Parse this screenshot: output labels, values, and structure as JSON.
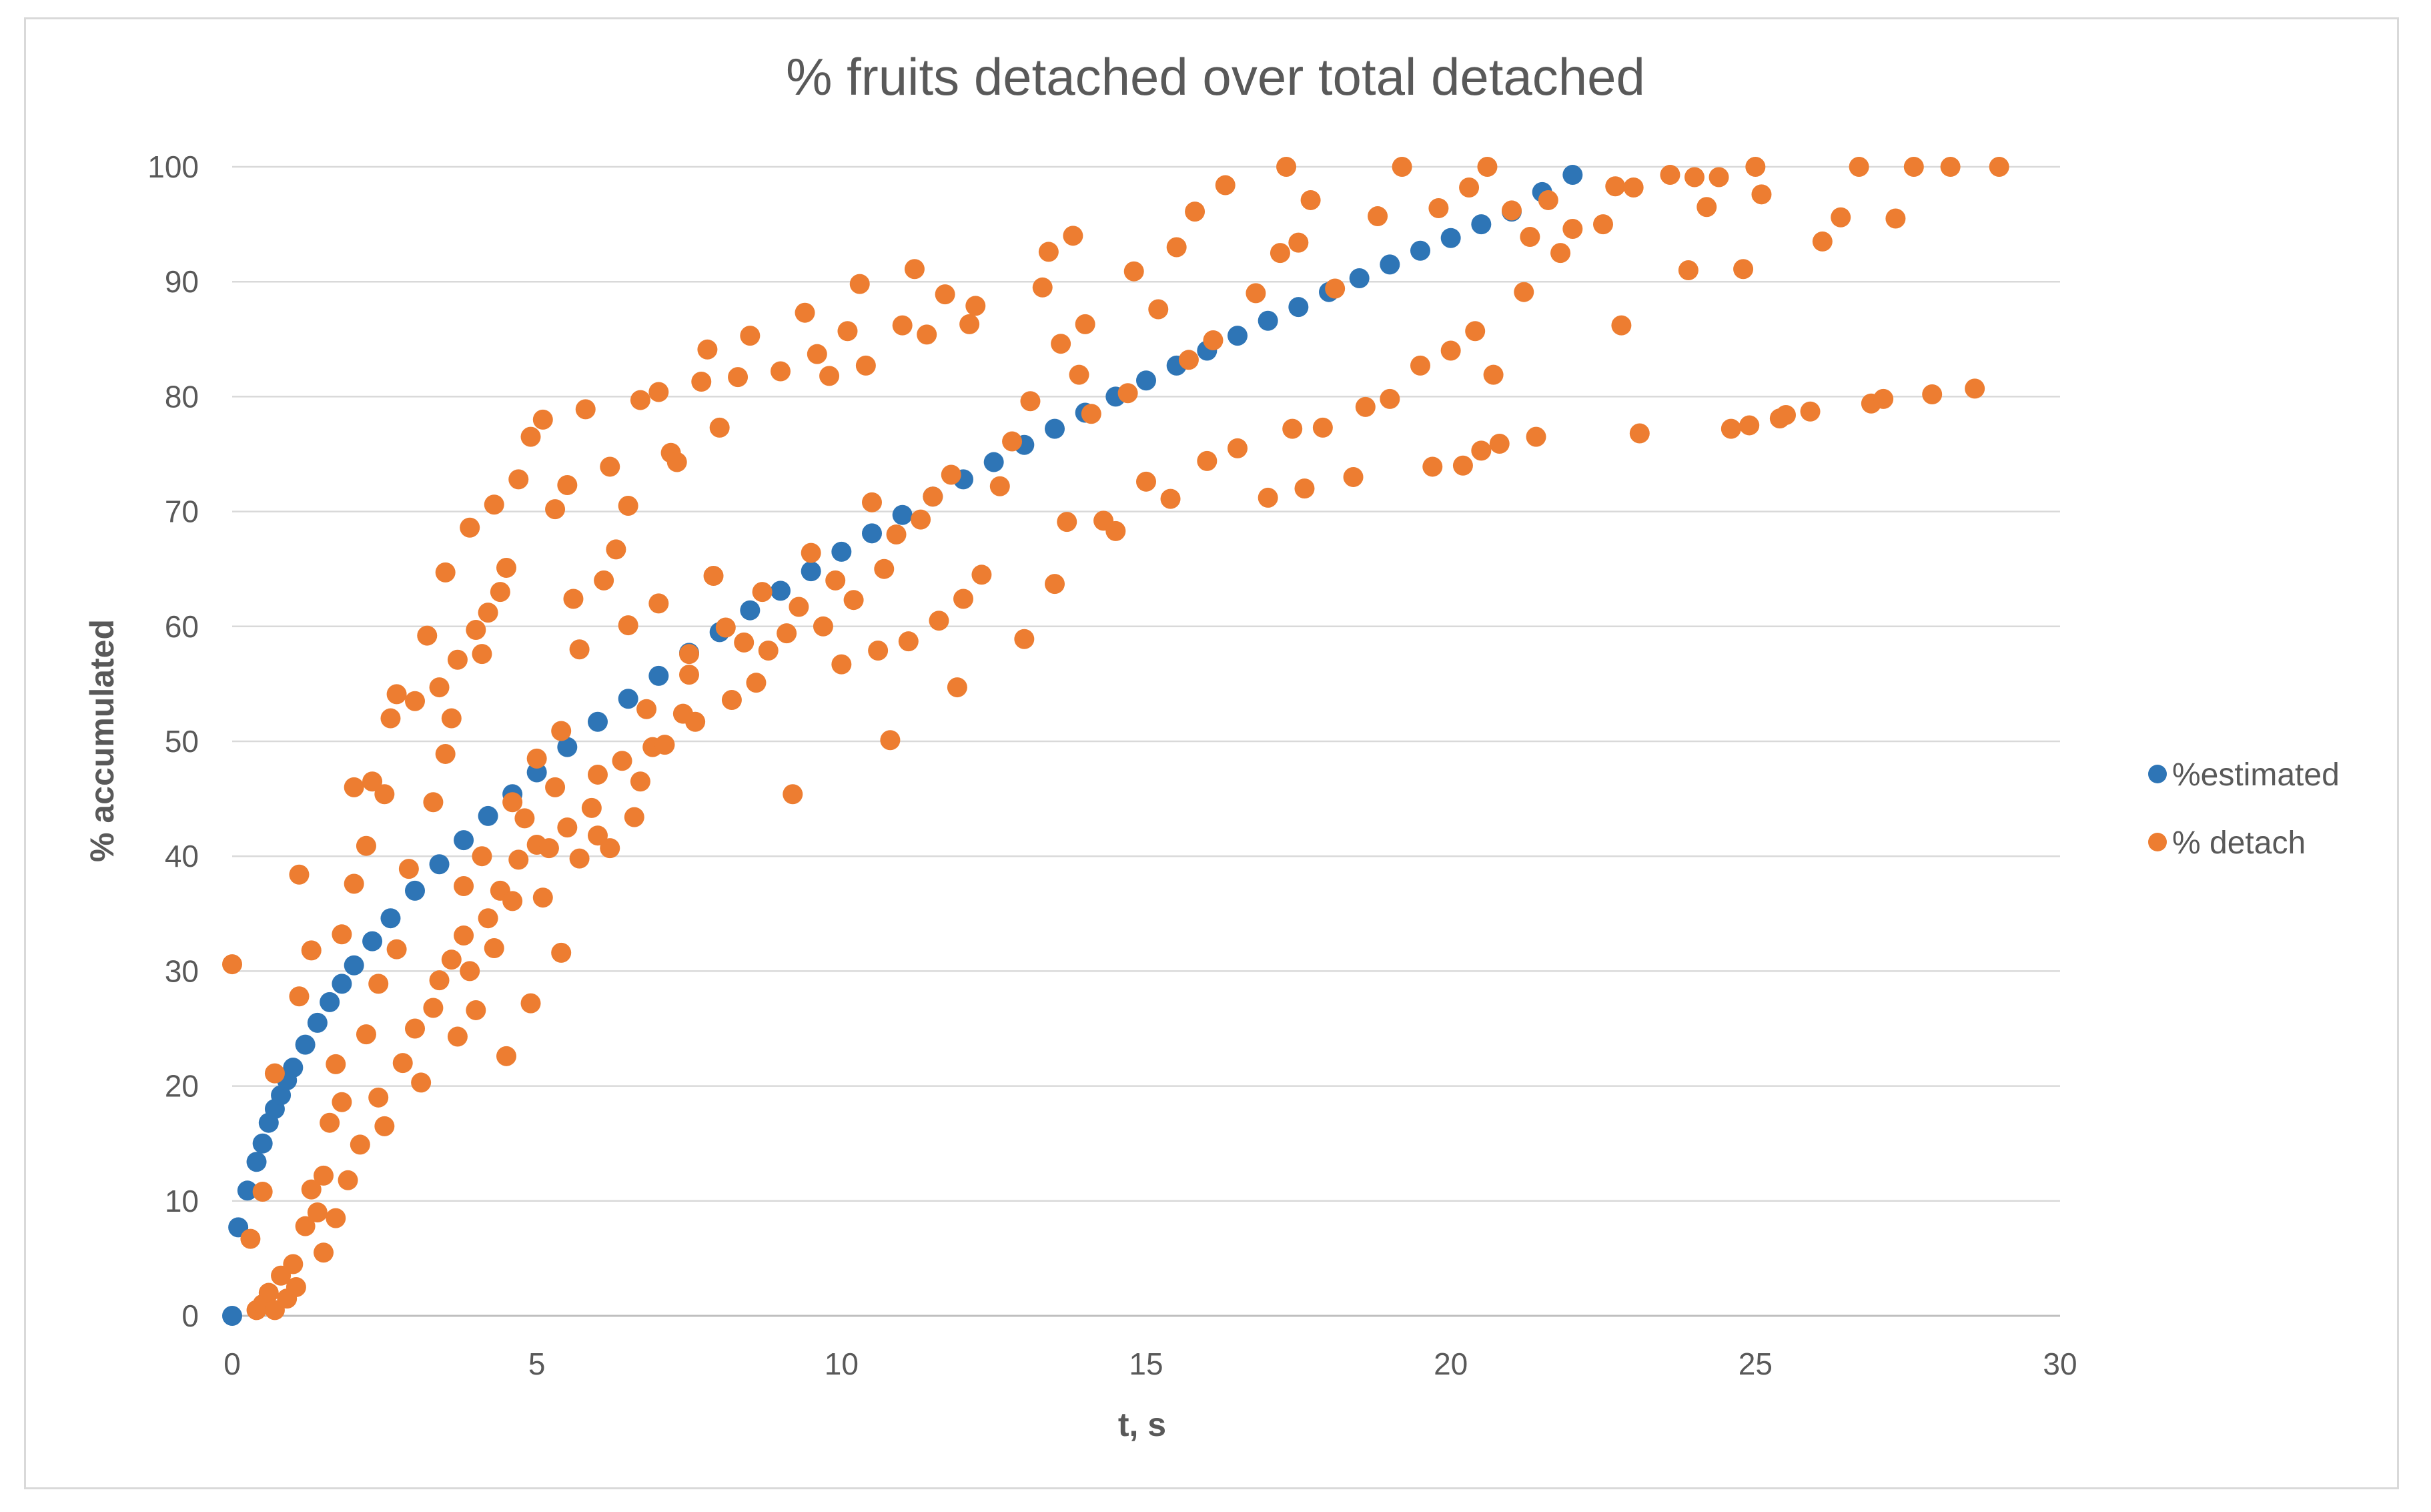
{
  "chart_data": {
    "type": "scatter",
    "title": "% fruits detached over total detached",
    "xlabel": "t, s",
    "ylabel": "% accumulated",
    "xlim": [
      0,
      30
    ],
    "ylim": [
      0,
      100
    ],
    "x_ticks": [
      "0",
      "5",
      "10",
      "15",
      "20",
      "25",
      "30"
    ],
    "y_ticks": [
      "0",
      "10",
      "20",
      "30",
      "40",
      "50",
      "60",
      "70",
      "80",
      "90",
      "100"
    ],
    "grid": "horizontal",
    "legend_position": "right",
    "series": [
      {
        "name": "%estimated",
        "color": "#2e75b6",
        "points": [
          [
            0.0,
            0.0
          ],
          [
            0.1,
            7.7
          ],
          [
            0.25,
            10.9
          ],
          [
            0.4,
            13.4
          ],
          [
            0.5,
            15.0
          ],
          [
            0.6,
            16.8
          ],
          [
            0.7,
            18.0
          ],
          [
            0.8,
            19.2
          ],
          [
            0.9,
            20.5
          ],
          [
            1.0,
            21.6
          ],
          [
            1.2,
            23.6
          ],
          [
            1.4,
            25.5
          ],
          [
            1.6,
            27.3
          ],
          [
            1.8,
            28.9
          ],
          [
            2.0,
            30.5
          ],
          [
            2.3,
            32.6
          ],
          [
            2.6,
            34.6
          ],
          [
            3.0,
            37.0
          ],
          [
            3.4,
            39.3
          ],
          [
            3.8,
            41.4
          ],
          [
            4.2,
            43.5
          ],
          [
            4.6,
            45.4
          ],
          [
            5.0,
            47.3
          ],
          [
            5.5,
            49.5
          ],
          [
            6.0,
            51.7
          ],
          [
            6.5,
            53.7
          ],
          [
            7.0,
            55.7
          ],
          [
            7.5,
            57.7
          ],
          [
            8.0,
            59.5
          ],
          [
            8.5,
            61.4
          ],
          [
            9.0,
            63.1
          ],
          [
            9.5,
            64.8
          ],
          [
            10.0,
            66.5
          ],
          [
            10.5,
            68.1
          ],
          [
            11.0,
            69.7
          ],
          [
            11.5,
            71.3
          ],
          [
            12.0,
            72.8
          ],
          [
            12.5,
            74.3
          ],
          [
            13.0,
            75.8
          ],
          [
            13.5,
            77.2
          ],
          [
            14.0,
            78.6
          ],
          [
            14.5,
            80.0
          ],
          [
            15.0,
            81.4
          ],
          [
            15.5,
            82.7
          ],
          [
            16.0,
            84.0
          ],
          [
            16.5,
            85.3
          ],
          [
            17.0,
            86.6
          ],
          [
            17.5,
            87.8
          ],
          [
            18.0,
            89.1
          ],
          [
            18.5,
            90.3
          ],
          [
            19.0,
            91.5
          ],
          [
            19.5,
            92.7
          ],
          [
            20.0,
            93.8
          ],
          [
            20.5,
            95.0
          ],
          [
            21.0,
            96.1
          ],
          [
            21.5,
            97.8
          ],
          [
            22.0,
            99.3
          ]
        ]
      },
      {
        "name": "% detach",
        "color": "#ed7d31",
        "points": [
          [
            0.0,
            30.6
          ],
          [
            0.3,
            6.7
          ],
          [
            0.4,
            0.5
          ],
          [
            0.5,
            10.8
          ],
          [
            0.5,
            1.0
          ],
          [
            0.6,
            2.0
          ],
          [
            0.7,
            0.5
          ],
          [
            0.7,
            21.1
          ],
          [
            0.8,
            3.5
          ],
          [
            0.9,
            1.5
          ],
          [
            1.0,
            4.5
          ],
          [
            1.05,
            2.5
          ],
          [
            1.1,
            38.4
          ],
          [
            1.1,
            27.8
          ],
          [
            1.2,
            7.8
          ],
          [
            1.3,
            11.0
          ],
          [
            1.3,
            31.8
          ],
          [
            1.4,
            9.0
          ],
          [
            1.5,
            12.2
          ],
          [
            1.5,
            5.5
          ],
          [
            1.6,
            16.8
          ],
          [
            1.7,
            21.9
          ],
          [
            1.7,
            8.5
          ],
          [
            1.8,
            33.2
          ],
          [
            1.8,
            18.6
          ],
          [
            1.9,
            11.8
          ],
          [
            2.0,
            37.6
          ],
          [
            2.0,
            46.0
          ],
          [
            2.1,
            14.9
          ],
          [
            2.2,
            24.5
          ],
          [
            2.2,
            40.9
          ],
          [
            2.3,
            46.5
          ],
          [
            2.4,
            28.9
          ],
          [
            2.4,
            19.0
          ],
          [
            2.5,
            45.4
          ],
          [
            2.5,
            16.5
          ],
          [
            2.6,
            52.0
          ],
          [
            2.7,
            54.1
          ],
          [
            2.7,
            31.9
          ],
          [
            2.8,
            22.0
          ],
          [
            2.9,
            38.9
          ],
          [
            3.0,
            25.0
          ],
          [
            3.0,
            53.5
          ],
          [
            3.1,
            20.3
          ],
          [
            3.2,
            59.2
          ],
          [
            3.3,
            44.7
          ],
          [
            3.3,
            26.8
          ],
          [
            3.4,
            29.2
          ],
          [
            3.4,
            54.7
          ],
          [
            3.5,
            48.9
          ],
          [
            3.5,
            64.7
          ],
          [
            3.6,
            31.0
          ],
          [
            3.6,
            52.0
          ],
          [
            3.7,
            24.3
          ],
          [
            3.7,
            57.1
          ],
          [
            3.8,
            37.4
          ],
          [
            3.8,
            33.1
          ],
          [
            3.9,
            30.0
          ],
          [
            3.9,
            68.6
          ],
          [
            4.0,
            26.6
          ],
          [
            4.0,
            59.7
          ],
          [
            4.1,
            40.0
          ],
          [
            4.1,
            57.6
          ],
          [
            4.2,
            34.6
          ],
          [
            4.2,
            61.2
          ],
          [
            4.3,
            32.0
          ],
          [
            4.3,
            70.6
          ],
          [
            4.4,
            37.0
          ],
          [
            4.4,
            63.0
          ],
          [
            4.5,
            22.6
          ],
          [
            4.5,
            65.1
          ],
          [
            4.6,
            36.1
          ],
          [
            4.6,
            44.7
          ],
          [
            4.7,
            39.7
          ],
          [
            4.7,
            72.8
          ],
          [
            4.8,
            43.3
          ],
          [
            4.9,
            27.2
          ],
          [
            4.9,
            76.5
          ],
          [
            5.0,
            41.0
          ],
          [
            5.0,
            48.5
          ],
          [
            5.1,
            36.4
          ],
          [
            5.1,
            78.0
          ],
          [
            5.2,
            40.7
          ],
          [
            5.3,
            46.0
          ],
          [
            5.3,
            70.2
          ],
          [
            5.4,
            31.6
          ],
          [
            5.4,
            50.9
          ],
          [
            5.5,
            42.5
          ],
          [
            5.5,
            72.3
          ],
          [
            5.6,
            62.4
          ],
          [
            5.7,
            39.8
          ],
          [
            5.7,
            58.0
          ],
          [
            5.8,
            78.9
          ],
          [
            5.9,
            44.2
          ],
          [
            6.0,
            41.8
          ],
          [
            6.0,
            47.1
          ],
          [
            6.1,
            64.0
          ],
          [
            6.2,
            40.7
          ],
          [
            6.2,
            73.9
          ],
          [
            6.3,
            66.7
          ],
          [
            6.4,
            48.3
          ],
          [
            6.5,
            60.1
          ],
          [
            6.5,
            70.5
          ],
          [
            6.6,
            43.4
          ],
          [
            6.7,
            46.5
          ],
          [
            6.7,
            79.7
          ],
          [
            6.8,
            52.8
          ],
          [
            6.9,
            49.5
          ],
          [
            7.0,
            62.0
          ],
          [
            7.0,
            80.4
          ],
          [
            7.1,
            49.7
          ],
          [
            7.2,
            75.1
          ],
          [
            7.3,
            74.3
          ],
          [
            7.4,
            52.4
          ],
          [
            7.5,
            55.8
          ],
          [
            7.5,
            57.6
          ],
          [
            7.6,
            51.7
          ],
          [
            7.7,
            81.3
          ],
          [
            7.8,
            84.1
          ],
          [
            7.9,
            64.4
          ],
          [
            8.0,
            77.3
          ],
          [
            8.1,
            59.9
          ],
          [
            8.2,
            53.6
          ],
          [
            8.3,
            81.7
          ],
          [
            8.4,
            58.6
          ],
          [
            8.5,
            85.3
          ],
          [
            8.6,
            55.1
          ],
          [
            8.7,
            63.0
          ],
          [
            8.8,
            57.9
          ],
          [
            9.0,
            82.2
          ],
          [
            9.1,
            59.4
          ],
          [
            9.2,
            45.4
          ],
          [
            9.3,
            61.7
          ],
          [
            9.4,
            87.3
          ],
          [
            9.5,
            66.4
          ],
          [
            9.6,
            83.7
          ],
          [
            9.7,
            60.0
          ],
          [
            9.8,
            81.8
          ],
          [
            9.9,
            64.0
          ],
          [
            10.0,
            56.7
          ],
          [
            10.1,
            85.7
          ],
          [
            10.2,
            62.3
          ],
          [
            10.3,
            89.8
          ],
          [
            10.4,
            82.7
          ],
          [
            10.5,
            70.8
          ],
          [
            10.6,
            57.9
          ],
          [
            10.7,
            65.0
          ],
          [
            10.8,
            50.1
          ],
          [
            10.9,
            68.0
          ],
          [
            11.0,
            86.2
          ],
          [
            11.1,
            58.7
          ],
          [
            11.2,
            91.1
          ],
          [
            11.3,
            69.3
          ],
          [
            11.4,
            85.4
          ],
          [
            11.5,
            71.3
          ],
          [
            11.6,
            60.5
          ],
          [
            11.7,
            88.9
          ],
          [
            11.8,
            73.2
          ],
          [
            11.9,
            54.7
          ],
          [
            12.0,
            62.4
          ],
          [
            12.1,
            86.3
          ],
          [
            12.2,
            87.9
          ],
          [
            12.3,
            64.5
          ],
          [
            12.6,
            72.2
          ],
          [
            12.8,
            76.1
          ],
          [
            13.0,
            58.9
          ],
          [
            13.1,
            79.6
          ],
          [
            13.3,
            89.5
          ],
          [
            13.4,
            92.6
          ],
          [
            13.5,
            63.7
          ],
          [
            13.6,
            84.6
          ],
          [
            13.7,
            69.1
          ],
          [
            13.8,
            94.0
          ],
          [
            13.9,
            81.9
          ],
          [
            14.0,
            86.3
          ],
          [
            14.1,
            78.5
          ],
          [
            14.3,
            69.2
          ],
          [
            14.5,
            68.3
          ],
          [
            14.7,
            80.3
          ],
          [
            14.8,
            90.9
          ],
          [
            15.0,
            72.6
          ],
          [
            15.2,
            87.6
          ],
          [
            15.4,
            71.1
          ],
          [
            15.5,
            93.0
          ],
          [
            15.7,
            83.2
          ],
          [
            15.8,
            96.1
          ],
          [
            16.0,
            74.4
          ],
          [
            16.1,
            84.9
          ],
          [
            16.3,
            98.4
          ],
          [
            16.5,
            75.5
          ],
          [
            16.8,
            89.0
          ],
          [
            17.0,
            71.2
          ],
          [
            17.2,
            92.5
          ],
          [
            17.3,
            100.0
          ],
          [
            17.4,
            77.2
          ],
          [
            17.5,
            93.4
          ],
          [
            17.6,
            72.0
          ],
          [
            17.7,
            97.1
          ],
          [
            17.9,
            77.3
          ],
          [
            18.1,
            89.4
          ],
          [
            18.4,
            73.0
          ],
          [
            18.6,
            79.1
          ],
          [
            18.8,
            95.7
          ],
          [
            19.0,
            79.8
          ],
          [
            19.2,
            100.0
          ],
          [
            19.5,
            82.7
          ],
          [
            19.7,
            73.9
          ],
          [
            19.8,
            96.4
          ],
          [
            20.0,
            84.0
          ],
          [
            20.2,
            74.0
          ],
          [
            20.3,
            98.2
          ],
          [
            20.4,
            85.7
          ],
          [
            20.5,
            75.3
          ],
          [
            20.6,
            100.0
          ],
          [
            20.7,
            81.9
          ],
          [
            20.8,
            75.9
          ],
          [
            21.0,
            96.2
          ],
          [
            21.2,
            89.1
          ],
          [
            21.3,
            93.9
          ],
          [
            21.4,
            76.5
          ],
          [
            21.6,
            97.1
          ],
          [
            21.8,
            92.5
          ],
          [
            22.0,
            94.6
          ],
          [
            22.5,
            95.0
          ],
          [
            22.7,
            98.3
          ],
          [
            22.8,
            86.2
          ],
          [
            23.0,
            98.2
          ],
          [
            23.1,
            76.8
          ],
          [
            23.6,
            99.3
          ],
          [
            23.9,
            91.0
          ],
          [
            24.0,
            99.1
          ],
          [
            24.2,
            96.5
          ],
          [
            24.4,
            99.1
          ],
          [
            24.6,
            77.2
          ],
          [
            24.8,
            91.1
          ],
          [
            24.9,
            77.5
          ],
          [
            25.0,
            100.0
          ],
          [
            25.1,
            97.6
          ],
          [
            25.4,
            78.1
          ],
          [
            25.5,
            78.4
          ],
          [
            25.9,
            78.7
          ],
          [
            26.1,
            93.5
          ],
          [
            26.4,
            95.6
          ],
          [
            26.7,
            100.0
          ],
          [
            26.9,
            79.4
          ],
          [
            27.1,
            79.8
          ],
          [
            27.3,
            95.5
          ],
          [
            27.6,
            100.0
          ],
          [
            27.9,
            80.2
          ],
          [
            28.2,
            100.0
          ],
          [
            28.6,
            80.7
          ],
          [
            29.0,
            100.0
          ]
        ]
      }
    ]
  }
}
